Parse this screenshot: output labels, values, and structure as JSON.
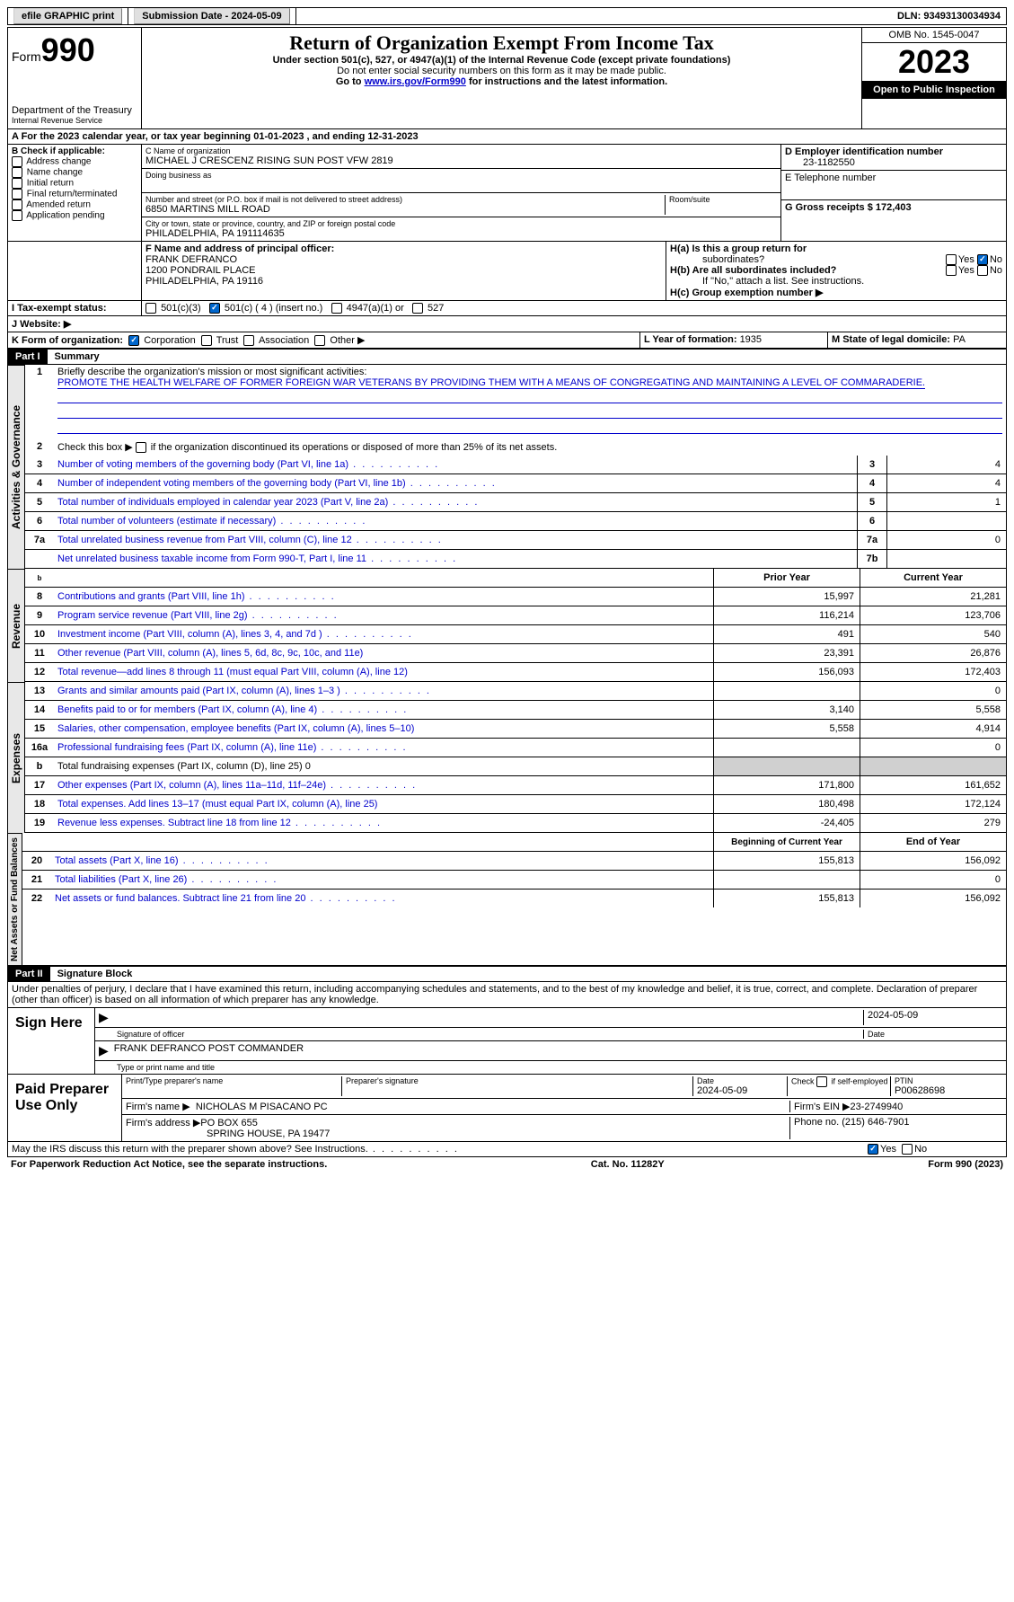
{
  "topbar": {
    "efile": "efile GRAPHIC print",
    "submission_label": "Submission Date - ",
    "submission_date": "2024-05-09",
    "dln_label": "DLN: ",
    "dln": "93493130034934"
  },
  "header": {
    "form_word": "Form",
    "form_num": "990",
    "dept": "Department of the Treasury",
    "irs": "Internal Revenue Service",
    "title": "Return of Organization Exempt From Income Tax",
    "subtitle": "Under section 501(c), 527, or 4947(a)(1) of the Internal Revenue Code (except private foundations)",
    "warn": "Do not enter social security numbers on this form as it may be made public.",
    "goto_pre": "Go to ",
    "goto_link": "www.irs.gov/Form990",
    "goto_post": " for instructions and the latest information.",
    "omb": "OMB No. 1545-0047",
    "year": "2023",
    "inspection": "Open to Public Inspection"
  },
  "lineA": {
    "text_pre": "A For the 2023 calendar year, or tax year beginning ",
    "begin": "01-01-2023",
    "mid": " , and ending ",
    "end": "12-31-2023"
  },
  "colB": {
    "title": "B Check if applicable:",
    "items": [
      "Address change",
      "Name change",
      "Initial return",
      "Final return/terminated",
      "Amended return",
      "Application pending"
    ]
  },
  "colC": {
    "name_label": "C Name of organization",
    "name": "MICHAEL J CRESCENZ RISING SUN POST VFW 2819",
    "dba_label": "Doing business as",
    "street_label": "Number and street (or P.O. box if mail is not delivered to street address)",
    "street": "6850 MARTINS MILL ROAD",
    "room_label": "Room/suite",
    "city_label": "City or town, state or province, country, and ZIP or foreign postal code",
    "city": "PHILADELPHIA, PA  191114635"
  },
  "colD": {
    "ein_label": "D Employer identification number",
    "ein": "23-1182550",
    "phone_label": "E Telephone number",
    "gross_label": "G Gross receipts $ ",
    "gross": "172,403"
  },
  "rowF": {
    "label": "F  Name and address of principal officer:",
    "name": "FRANK DEFRANCO",
    "addr1": "1200 PONDRAIL PLACE",
    "addr2": "PHILADELPHIA, PA  19116"
  },
  "rowH": {
    "ha": "H(a)  Is this a group return for",
    "ha2": "subordinates?",
    "hb": "H(b)  Are all subordinates included?",
    "hb_note": "If \"No,\" attach a list. See instructions.",
    "hc": "H(c)  Group exemption number ▶",
    "yes": "Yes",
    "no": "No"
  },
  "rowI": {
    "label": "I   Tax-exempt status:",
    "opt1": "501(c)(3)",
    "opt2": "501(c) ( 4 ) (insert no.)",
    "opt3": "4947(a)(1) or",
    "opt4": "527"
  },
  "rowJ": {
    "label": "J   Website: ▶"
  },
  "rowK": {
    "label": "K Form of organization:",
    "opts": [
      "Corporation",
      "Trust",
      "Association",
      "Other ▶"
    ]
  },
  "rowL": {
    "label": "L Year of formation: ",
    "val": "1935"
  },
  "rowM": {
    "label": "M State of legal domicile: ",
    "val": "PA"
  },
  "part1": {
    "label": "Part I",
    "title": "Summary"
  },
  "gov": {
    "vert": "Activities & Governance",
    "l1_label": "Briefly describe the organization's mission or most significant activities:",
    "l1_text": "PROMOTE THE HEALTH WELFARE OF FORMER FOREIGN WAR VETERANS BY PROVIDING THEM WITH A MEANS OF CONGREGATING AND MAINTAINING A LEVEL OF COMMARADERIE.",
    "l2": "Check this box ▶       if the organization discontinued its operations or disposed of more than 25% of its net assets.",
    "l3": "Number of voting members of the governing body (Part VI, line 1a)",
    "l4": "Number of independent voting members of the governing body (Part VI, line 1b)",
    "l5": "Total number of individuals employed in calendar year 2023 (Part V, line 2a)",
    "l6": "Total number of volunteers (estimate if necessary)",
    "l7a": "Total unrelated business revenue from Part VIII, column (C), line 12",
    "l7b": "Net unrelated business taxable income from Form 990-T, Part I, line 11",
    "v3": "4",
    "v4": "4",
    "v5": "1",
    "v6": "",
    "v7a": "0",
    "v7b": ""
  },
  "rev": {
    "vert": "Revenue",
    "hdr_prior": "Prior Year",
    "hdr_curr": "Current Year",
    "l8": "Contributions and grants (Part VIII, line 1h)",
    "l9": "Program service revenue (Part VIII, line 2g)",
    "l10": "Investment income (Part VIII, column (A), lines 3, 4, and 7d )",
    "l11": "Other revenue (Part VIII, column (A), lines 5, 6d, 8c, 9c, 10c, and 11e)",
    "l12": "Total revenue—add lines 8 through 11 (must equal Part VIII, column (A), line 12)",
    "p8": "15,997",
    "c8": "21,281",
    "p9": "116,214",
    "c9": "123,706",
    "p10": "491",
    "c10": "540",
    "p11": "23,391",
    "c11": "26,876",
    "p12": "156,093",
    "c12": "172,403"
  },
  "exp": {
    "vert": "Expenses",
    "l13": "Grants and similar amounts paid (Part IX, column (A), lines 1–3 )",
    "l14": "Benefits paid to or for members (Part IX, column (A), line 4)",
    "l15": "Salaries, other compensation, employee benefits (Part IX, column (A), lines 5–10)",
    "l16a": "Professional fundraising fees (Part IX, column (A), line 11e)",
    "l16b": "Total fundraising expenses (Part IX, column (D), line 25) 0",
    "l17": "Other expenses (Part IX, column (A), lines 11a–11d, 11f–24e)",
    "l18": "Total expenses. Add lines 13–17 (must equal Part IX, column (A), line 25)",
    "l19": "Revenue less expenses. Subtract line 18 from line 12",
    "p13": "",
    "c13": "0",
    "p14": "3,140",
    "c14": "5,558",
    "p15": "5,558",
    "c15": "4,914",
    "p16a": "",
    "c16a": "0",
    "p17": "171,800",
    "c17": "161,652",
    "p18": "180,498",
    "c18": "172,124",
    "p19": "-24,405",
    "c19": "279"
  },
  "net": {
    "vert": "Net Assets or Fund Balances",
    "hdr_begin": "Beginning of Current Year",
    "hdr_end": "End of Year",
    "l20": "Total assets (Part X, line 16)",
    "l21": "Total liabilities (Part X, line 26)",
    "l22": "Net assets or fund balances. Subtract line 21 from line 20",
    "b20": "155,813",
    "e20": "156,092",
    "b21": "",
    "e21": "0",
    "b22": "155,813",
    "e22": "156,092"
  },
  "part2": {
    "label": "Part II",
    "title": "Signature Block",
    "declaration": "Under penalties of perjury, I declare that I have examined this return, including accompanying schedules and statements, and to the best of my knowledge and belief, it is true, correct, and complete. Declaration of preparer (other than officer) is based on all information of which preparer has any knowledge."
  },
  "sign": {
    "left": "Sign Here",
    "sig_label": "Signature of officer",
    "date_label": "Date",
    "date_val": "2024-05-09",
    "name": "FRANK DEFRANCO POST COMMANDER",
    "name_label": "Type or print name and title"
  },
  "paid": {
    "left": "Paid Preparer Use Only",
    "h1": "Print/Type preparer's name",
    "h2": "Preparer's signature",
    "h3": "Date",
    "h3v": "2024-05-09",
    "h4": "Check        if self-employed",
    "h5": "PTIN",
    "h5v": "P00628698",
    "firm_label": "Firm's name    ▶",
    "firm": "NICHOLAS M PISACANO PC",
    "ein_label": "Firm's EIN ▶",
    "ein": "23-2749940",
    "addr_label": "Firm's address ▶",
    "addr1": "PO BOX 655",
    "addr2": "SPRING HOUSE, PA  19477",
    "phone_label": "Phone no. ",
    "phone": "(215) 646-7901"
  },
  "may_discuss": "May the IRS discuss this return with the preparer shown above? See Instructions.",
  "footer": {
    "left": "For Paperwork Reduction Act Notice, see the separate instructions.",
    "mid": "Cat. No. 11282Y",
    "right": "Form 990 (2023)"
  }
}
